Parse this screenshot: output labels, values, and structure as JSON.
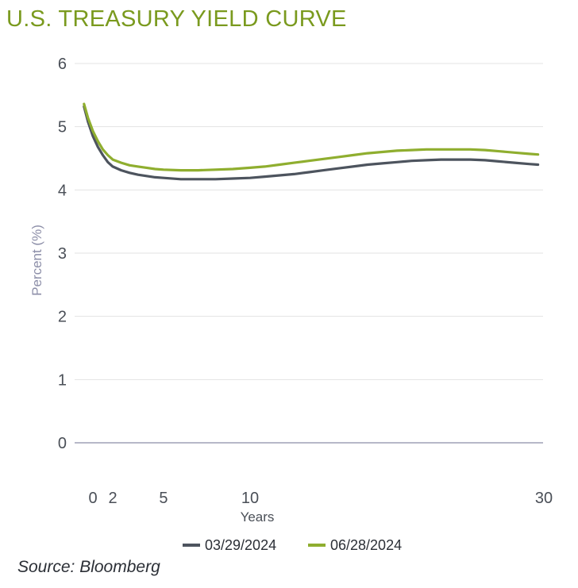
{
  "title": "U.S. TREASURY YIELD CURVE",
  "source": "Source: Bloomberg",
  "colors": {
    "title": "#7a9a1e",
    "series1": "#4d545e",
    "series2": "#8fae2f",
    "grid": "#e3e3e3",
    "baseline": "#8c8ea8"
  },
  "chart_data": {
    "type": "line",
    "title": "U.S. TREASURY YIELD CURVE",
    "xlabel": "Years",
    "ylabel": "Percent (%)",
    "xlim": [
      -1,
      30
    ],
    "ylim": [
      0,
      6
    ],
    "yticks": [
      "0",
      "1",
      "2",
      "3",
      "4",
      "5",
      "6"
    ],
    "xticks": [
      "0",
      "2",
      "5",
      "10",
      "30"
    ],
    "grid": true,
    "legend": "bottom",
    "series": [
      {
        "name": "03/29/2024",
        "color": "#4d545e",
        "x": [
          -0.9,
          -0.5,
          0,
          0.5,
          1,
          1.5,
          2,
          2.5,
          3,
          3.5,
          4,
          4.5,
          5,
          6,
          7,
          8,
          9,
          10,
          11,
          12,
          13,
          14,
          15,
          16,
          17,
          18,
          19,
          20,
          21,
          22,
          23,
          24,
          25,
          26,
          27,
          28,
          29,
          29.6
        ],
        "y": [
          5.32,
          5.08,
          4.85,
          4.68,
          4.55,
          4.44,
          4.37,
          4.31,
          4.27,
          4.24,
          4.22,
          4.2,
          4.19,
          4.17,
          4.17,
          4.17,
          4.18,
          4.19,
          4.21,
          4.23,
          4.25,
          4.28,
          4.31,
          4.34,
          4.37,
          4.4,
          4.42,
          4.44,
          4.46,
          4.47,
          4.48,
          4.48,
          4.48,
          4.47,
          4.45,
          4.43,
          4.41,
          4.4
        ]
      },
      {
        "name": "06/28/2024",
        "color": "#8fae2f",
        "x": [
          -0.9,
          -0.5,
          0,
          0.5,
          1,
          1.5,
          2,
          2.5,
          3,
          3.5,
          4,
          4.5,
          5,
          6,
          7,
          8,
          9,
          10,
          11,
          12,
          13,
          14,
          15,
          16,
          17,
          18,
          19,
          20,
          21,
          22,
          23,
          24,
          25,
          26,
          27,
          28,
          29,
          29.6
        ],
        "y": [
          5.36,
          5.14,
          4.93,
          4.77,
          4.64,
          4.55,
          4.48,
          4.43,
          4.39,
          4.37,
          4.35,
          4.33,
          4.32,
          4.31,
          4.31,
          4.32,
          4.33,
          4.35,
          4.37,
          4.4,
          4.43,
          4.46,
          4.49,
          4.52,
          4.55,
          4.58,
          4.6,
          4.62,
          4.63,
          4.64,
          4.64,
          4.64,
          4.64,
          4.63,
          4.61,
          4.59,
          4.57,
          4.56
        ]
      }
    ]
  }
}
